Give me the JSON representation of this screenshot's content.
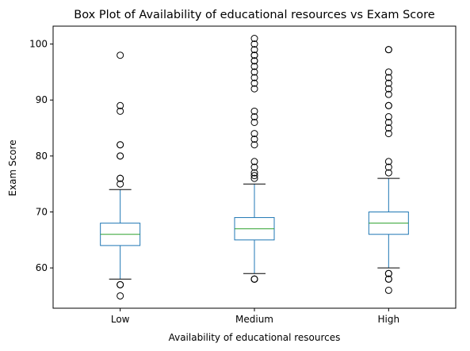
{
  "chart_data": {
    "type": "box",
    "title": "Box Plot of Availability of educational resources vs Exam Score",
    "xlabel": "Availability of educational resources",
    "ylabel": "Exam Score",
    "ylim": [
      52.8,
      103.2
    ],
    "yticks": [
      60,
      70,
      80,
      90,
      100
    ],
    "categories": [
      "Low",
      "Medium",
      "High"
    ],
    "grid": false,
    "legend": "none",
    "colors": {
      "box": "#1f77b4",
      "median": "#2ca02c",
      "outlier": "#000000"
    },
    "boxes": [
      {
        "category": "Low",
        "whisker_low": 58,
        "q1": 64,
        "median": 66,
        "q3": 68,
        "whisker_high": 74,
        "outliers": [
          55,
          57,
          57,
          75,
          76,
          76,
          80,
          80,
          82,
          82,
          88,
          89,
          98
        ]
      },
      {
        "category": "Medium",
        "whisker_low": 59,
        "q1": 65,
        "median": 67,
        "q3": 69,
        "whisker_high": 75,
        "outliers": [
          58,
          58,
          58,
          76,
          76.5,
          77,
          78,
          79,
          82,
          83,
          84,
          86,
          87,
          88,
          92,
          93,
          94,
          95,
          96,
          97,
          97,
          98,
          98,
          99,
          100,
          101
        ]
      },
      {
        "category": "High",
        "whisker_low": 60,
        "q1": 66,
        "median": 68,
        "q3": 70,
        "whisker_high": 76,
        "outliers": [
          56,
          58,
          58,
          59,
          59,
          77,
          78,
          79,
          84,
          85,
          86,
          87,
          89,
          89,
          91,
          92,
          93,
          94,
          95,
          99,
          99
        ]
      }
    ]
  }
}
